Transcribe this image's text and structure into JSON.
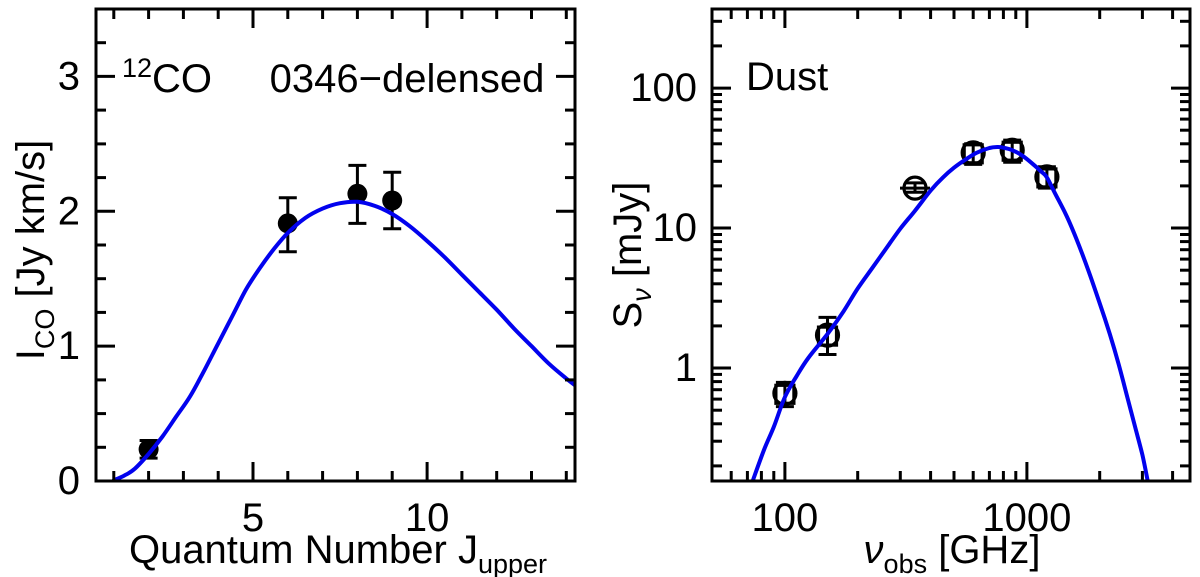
{
  "figure": {
    "background": "#ffffff",
    "frame_color": "#000000",
    "curve_color": "#0202ee",
    "text_color": "#000000"
  },
  "chart_data": [
    {
      "id": "co_sled",
      "type": "scatter",
      "annotation_parts": [
        {
          "t": "12",
          "style": "sup"
        },
        {
          "t": "CO"
        }
      ],
      "title": "0346−delensed",
      "xlabel_parts": [
        {
          "t": "Quantum Number J"
        },
        {
          "t": "upper",
          "style": "sub"
        }
      ],
      "ylabel_parts": [
        {
          "t": "I"
        },
        {
          "t": "CO",
          "style": "sub"
        },
        {
          "t": " [Jy km/s]"
        }
      ],
      "xscale": "linear",
      "yscale": "linear",
      "xlim": [
        0.49,
        14.25
      ],
      "ylim": [
        0,
        3.5
      ],
      "grid": false,
      "xticks_major": [
        {
          "v": 5,
          "label": "5"
        },
        {
          "v": 10,
          "label": "10"
        }
      ],
      "xticks_minor": [
        1,
        2,
        3,
        4,
        6,
        7,
        8,
        9,
        11,
        12,
        13,
        14
      ],
      "yticks_major": [
        {
          "v": 0,
          "label": "0"
        },
        {
          "v": 1,
          "label": "1"
        },
        {
          "v": 2,
          "label": "2"
        },
        {
          "v": 3,
          "label": "3"
        }
      ],
      "yticks_minor": [
        0.25,
        0.5,
        0.75,
        1.25,
        1.5,
        1.75,
        2.25,
        2.5,
        2.75,
        3.25
      ],
      "points": [
        {
          "x": 2,
          "y": 0.235,
          "lo": 0.17,
          "hi": 0.3,
          "markers": [
            "filled-circle"
          ]
        },
        {
          "x": 6,
          "y": 1.91,
          "lo": 1.7,
          "hi": 2.1,
          "markers": [
            "filled-circle"
          ]
        },
        {
          "x": 8,
          "y": 2.13,
          "lo": 1.91,
          "hi": 2.34,
          "markers": [
            "filled-circle"
          ]
        },
        {
          "x": 9,
          "y": 2.08,
          "lo": 1.87,
          "hi": 2.29,
          "markers": [
            "filled-circle"
          ]
        }
      ],
      "curve": [
        [
          1,
          0.005
        ],
        [
          1.3,
          0.04
        ],
        [
          1.6,
          0.09
        ],
        [
          2,
          0.2
        ],
        [
          2.4,
          0.33
        ],
        [
          2.8,
          0.48
        ],
        [
          3.2,
          0.63
        ],
        [
          3.6,
          0.82
        ],
        [
          4,
          1.02
        ],
        [
          4.4,
          1.22
        ],
        [
          4.8,
          1.42
        ],
        [
          5.2,
          1.58
        ],
        [
          5.6,
          1.72
        ],
        [
          6,
          1.84
        ],
        [
          6.5,
          1.95
        ],
        [
          7,
          2.02
        ],
        [
          7.5,
          2.06
        ],
        [
          8,
          2.07
        ],
        [
          8.5,
          2.04
        ],
        [
          9,
          1.98
        ],
        [
          9.5,
          1.89
        ],
        [
          10,
          1.78
        ],
        [
          10.5,
          1.66
        ],
        [
          11,
          1.53
        ],
        [
          11.5,
          1.4
        ],
        [
          12,
          1.27
        ],
        [
          12.5,
          1.13
        ],
        [
          13,
          1.0
        ],
        [
          13.5,
          0.87
        ],
        [
          14,
          0.76
        ],
        [
          14.25,
          0.71
        ]
      ]
    },
    {
      "id": "dust_sed",
      "type": "scatter",
      "annotation_parts": [
        {
          "t": "Dust"
        }
      ],
      "title": "",
      "xlabel_parts": [
        {
          "t": "ν",
          "style": "italic"
        },
        {
          "t": "obs",
          "style": "sub"
        },
        {
          "t": " [GHz]"
        }
      ],
      "ylabel_parts": [
        {
          "t": "S"
        },
        {
          "t": "ν",
          "style": "sub-italic"
        },
        {
          "t": " [mJy]"
        }
      ],
      "xscale": "log",
      "yscale": "log",
      "xlim": [
        50,
        4720
      ],
      "ylim": [
        0.156,
        367
      ],
      "grid": false,
      "xticks_major": [
        {
          "v": 100,
          "label": "100"
        },
        {
          "v": 1000,
          "label": "1000"
        }
      ],
      "xticks_minor": [
        60,
        70,
        80,
        90,
        200,
        300,
        400,
        500,
        600,
        700,
        800,
        900,
        2000,
        3000,
        4000
      ],
      "yticks_major": [
        {
          "v": 1,
          "label": "1"
        },
        {
          "v": 10,
          "label": "10"
        },
        {
          "v": 100,
          "label": "100"
        }
      ],
      "yticks_minor": [
        0.2,
        0.3,
        0.4,
        0.5,
        0.6,
        0.7,
        0.8,
        0.9,
        2,
        3,
        4,
        5,
        6,
        7,
        8,
        9,
        20,
        30,
        40,
        50,
        60,
        70,
        80,
        90,
        200,
        300
      ],
      "points": [
        {
          "x": 100,
          "y": 0.66,
          "lo": 0.53,
          "hi": 0.79,
          "markers": [
            "open-circle",
            "open-square"
          ]
        },
        {
          "x": 150,
          "y": 1.72,
          "lo": 1.25,
          "hi": 2.3,
          "markers": [
            "open-circle",
            "open-square"
          ]
        },
        {
          "x": 345,
          "y": 19.3,
          "lo": 18,
          "hi": 21,
          "markers": [
            "open-circle"
          ],
          "xbar": true
        },
        {
          "x": 600,
          "y": 34.5,
          "lo": 28.5,
          "hi": 40,
          "markers": [
            "open-circle",
            "open-square"
          ]
        },
        {
          "x": 870,
          "y": 36,
          "lo": 29.5,
          "hi": 42.5,
          "markers": [
            "open-circle",
            "open-square"
          ]
        },
        {
          "x": 1210,
          "y": 23.2,
          "lo": 19.3,
          "hi": 27.4,
          "markers": [
            "open-circle",
            "open-square"
          ]
        }
      ],
      "curve": [
        [
          74,
          0.16
        ],
        [
          82,
          0.26
        ],
        [
          90,
          0.38
        ],
        [
          100,
          0.62
        ],
        [
          112,
          0.88
        ],
        [
          125,
          1.18
        ],
        [
          150,
          1.75
        ],
        [
          175,
          2.55
        ],
        [
          200,
          3.7
        ],
        [
          230,
          5.2
        ],
        [
          260,
          7.0
        ],
        [
          300,
          9.9
        ],
        [
          345,
          13.3
        ],
        [
          400,
          18.5
        ],
        [
          450,
          23
        ],
        [
          500,
          27
        ],
        [
          560,
          31
        ],
        [
          620,
          34.5
        ],
        [
          700,
          37.3
        ],
        [
          760,
          37.9
        ],
        [
          800,
          37.5
        ],
        [
          870,
          36
        ],
        [
          950,
          33.2
        ],
        [
          1050,
          29
        ],
        [
          1150,
          25.2
        ],
        [
          1210,
          23
        ],
        [
          1300,
          18
        ],
        [
          1450,
          12.5
        ],
        [
          1600,
          8.4
        ],
        [
          1800,
          4.9
        ],
        [
          2000,
          2.9
        ],
        [
          2200,
          1.75
        ],
        [
          2400,
          1.05
        ],
        [
          2600,
          0.62
        ],
        [
          2800,
          0.38
        ],
        [
          3000,
          0.24
        ],
        [
          3160,
          0.155
        ]
      ]
    }
  ]
}
